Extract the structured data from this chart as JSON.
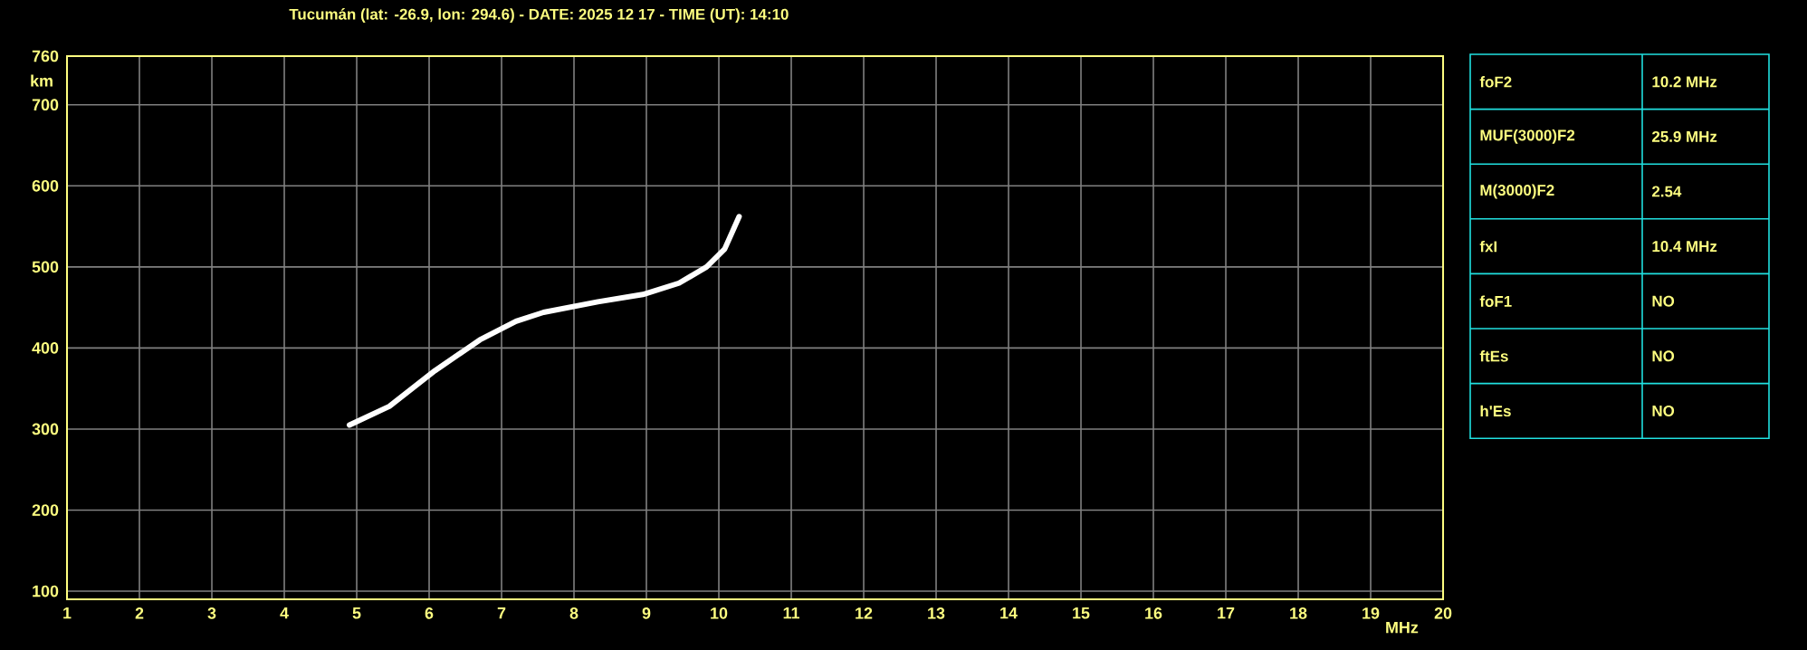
{
  "chart_data": [
    {
      "type": "line",
      "title": "Tucumán (lat: -26.9, lon: 294.6) - DATE: 2025 12 17 - TIME (UT): 14:10",
      "xlabel": "MHz",
      "ylabel": "km",
      "xlim": [
        1,
        20
      ],
      "ylim": [
        90,
        760
      ],
      "xticks": [
        1,
        2,
        3,
        4,
        5,
        6,
        7,
        8,
        9,
        10,
        11,
        12,
        13,
        14,
        15,
        16,
        17,
        18,
        19,
        20
      ],
      "yticks": [
        100,
        200,
        300,
        400,
        500,
        600,
        700,
        760
      ],
      "grid": true,
      "marker": "none",
      "line_style": "solid",
      "series": [
        {
          "color": "#ffffff",
          "x": [
            4.9,
            5.45,
            6.08,
            6.7,
            7.2,
            7.58,
            8.33,
            8.95,
            9.45,
            9.83,
            10.08,
            10.28
          ],
          "values": [
            305,
            328,
            372,
            410,
            433,
            444,
            457,
            466,
            480,
            500,
            522,
            562
          ]
        }
      ]
    },
    {
      "type": "other",
      "annotations": [
        "foF2",
        "10.2 MHz",
        "MUF(3000)F2",
        "25.9 MHz",
        "M(3000)F2",
        "2.54",
        "fxI",
        "10.4 MHz",
        "foF1",
        "NO",
        "ftEs",
        "NO",
        "h'Es",
        "NO"
      ]
    }
  ]
}
